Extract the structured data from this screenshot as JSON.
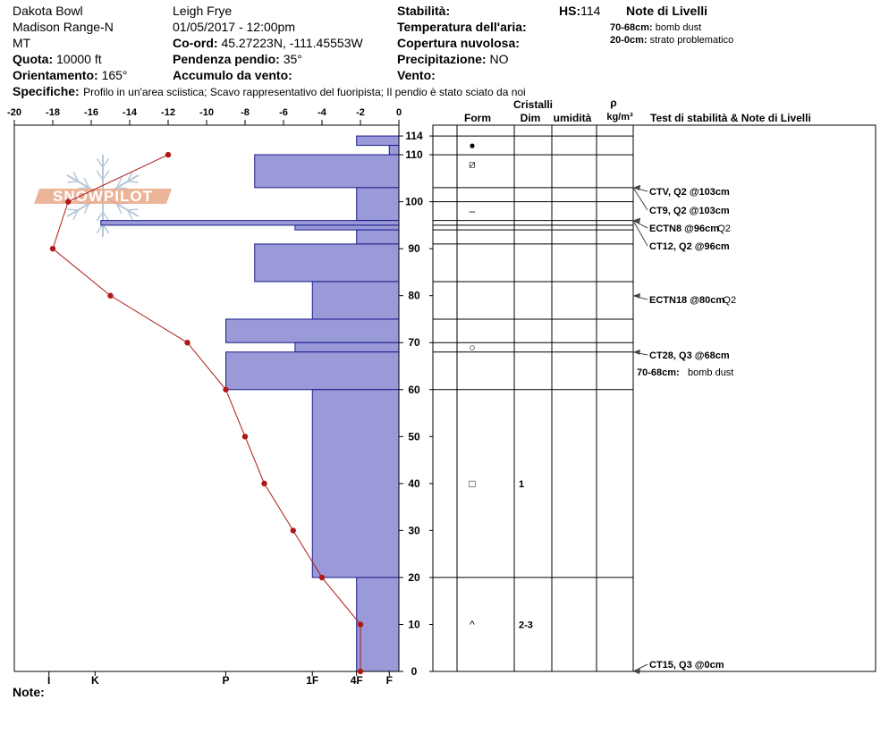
{
  "header": {
    "col1": [
      "Dakota Bowl",
      "Madison Range-N",
      "MT"
    ],
    "observer": "Leigh Frye",
    "datetime": "01/05/2017 - 12:00pm",
    "quota_label": "Quota:",
    "quota_value": "10000 ft",
    "orient_label": "Orientamento:",
    "orient_value": "165°",
    "coord_label": "Co-ord:",
    "coord_value": "45.27223N, -111.45553W",
    "slope_label": "Pendenza pendio:",
    "slope_value": "35°",
    "wind_accum_label": "Accumulo da vento:",
    "stability_label": "Stabilità:",
    "air_temp_label": "Temperatura dell'aria:",
    "cloud_label": "Copertura nuvolosa:",
    "precip_label": "Precipitazione:",
    "precip_value": "NO",
    "wind_label": "Vento:",
    "hs_label": "HS:",
    "hs_value": "114",
    "layer_notes_title": "Note di Livelli",
    "layer_notes": [
      {
        "range": "70-68cm:",
        "text": "bomb dust"
      },
      {
        "range": "20-0cm:",
        "text": "strato problematico"
      }
    ],
    "specifics_label": "Specifiche:",
    "specifics_text": "Profilo in un'area sciistica; Scavo rappresentativo del fuoripista; Il pendio è stato sciato da noi"
  },
  "footer": {
    "note_label": "Note:"
  },
  "logo": {
    "text": "SNOWPILOT"
  },
  "columns": {
    "crystals": "Cristalli",
    "form": "Form",
    "dim": "Dim",
    "humidity": "umidità",
    "rho": "ρ",
    "density_unit": "kg/m³",
    "tests": "Test di stabilità & Note di Livelli"
  },
  "chart_data": {
    "type": "bar",
    "title": "",
    "temp_axis": {
      "min": -20,
      "max": 0,
      "ticks": [
        -20,
        -18,
        -16,
        -14,
        -12,
        -10,
        -8,
        -6,
        -4,
        -2,
        0
      ]
    },
    "height_axis": {
      "min": 0,
      "max": 114,
      "ticks": [
        0,
        10,
        20,
        30,
        40,
        50,
        60,
        70,
        80,
        90,
        100,
        110,
        114
      ]
    },
    "hardness_labels": [
      {
        "label": "I",
        "value": 18.2
      },
      {
        "label": "K",
        "value": 15.8
      },
      {
        "label": "P",
        "value": 9
      },
      {
        "label": "1F",
        "value": 4.5
      },
      {
        "label": "4F",
        "value": 2.2
      },
      {
        "label": "F",
        "value": 0.5
      }
    ],
    "hardness_layers": [
      {
        "top": 114,
        "bottom": 112,
        "hardness": 2.2
      },
      {
        "top": 112,
        "bottom": 110,
        "hardness": 0.5
      },
      {
        "top": 110,
        "bottom": 103,
        "hardness": 7.5
      },
      {
        "top": 103,
        "bottom": 96,
        "hardness": 2.2
      },
      {
        "top": 96,
        "bottom": 95,
        "hardness": 15.5
      },
      {
        "top": 95,
        "bottom": 94,
        "hardness": 5.4
      },
      {
        "top": 94,
        "bottom": 91,
        "hardness": 2.2
      },
      {
        "top": 91,
        "bottom": 83,
        "hardness": 7.5
      },
      {
        "top": 83,
        "bottom": 75,
        "hardness": 4.5
      },
      {
        "top": 75,
        "bottom": 70,
        "hardness": 9
      },
      {
        "top": 70,
        "bottom": 68,
        "hardness": 5.4
      },
      {
        "top": 68,
        "bottom": 60,
        "hardness": 9
      },
      {
        "top": 60,
        "bottom": 20,
        "hardness": 4.5
      },
      {
        "top": 20,
        "bottom": 0,
        "hardness": 2.2
      }
    ],
    "temperature_profile": {
      "x_temp_c": [
        -12,
        -17.2,
        -18,
        -15,
        -11,
        -9,
        -8,
        -7,
        -5.5,
        -4,
        -2,
        -2
      ],
      "y_height_cm": [
        110,
        100,
        90,
        80,
        70,
        60,
        50,
        40,
        30,
        20,
        10,
        0
      ]
    },
    "layer_boundaries_cm": [
      114,
      110,
      103,
      100,
      96,
      95,
      94,
      91,
      83,
      75,
      70,
      68,
      60,
      20,
      0
    ],
    "grain_forms": [
      {
        "height": 112,
        "symbol": "●",
        "layer_height": 113
      },
      {
        "height": 108,
        "symbol": "⧄",
        "layer_height": 110
      },
      {
        "height": 98,
        "symbol": "–",
        "layer_height": 100
      },
      {
        "height": 69,
        "symbol": "○",
        "layer_height": 69
      },
      {
        "height": 40,
        "symbol": "□",
        "layer_height": 40,
        "size": "1"
      },
      {
        "height": 10,
        "symbol": "^",
        "layer_height": 10,
        "size": "2-3"
      }
    ],
    "stability_tests": [
      {
        "height": 103,
        "test": "CTV, Q2 @103cm",
        "extra": ""
      },
      {
        "height": 103,
        "test": "CT9, Q2 @103cm",
        "extra": ""
      },
      {
        "height": 96,
        "test": "ECTN8 @96cm",
        "extra": "Q2"
      },
      {
        "height": 96,
        "test": "CT12, Q2 @96cm",
        "extra": ""
      },
      {
        "height": 80,
        "test": "ECTN18 @80cm",
        "extra": "Q2"
      },
      {
        "height": 68,
        "test": "CT28, Q3 @68cm",
        "extra": ""
      },
      {
        "height": 0,
        "test": "CT15, Q3 @0cm",
        "extra": ""
      }
    ],
    "layer_note": {
      "range": "70-68cm:",
      "text": "bomb dust"
    }
  },
  "colors": {
    "bar": "#9a9ad8",
    "bar_stroke": "#1a1a8c",
    "temp_line": "#b01818",
    "logo": "#e8a888"
  }
}
